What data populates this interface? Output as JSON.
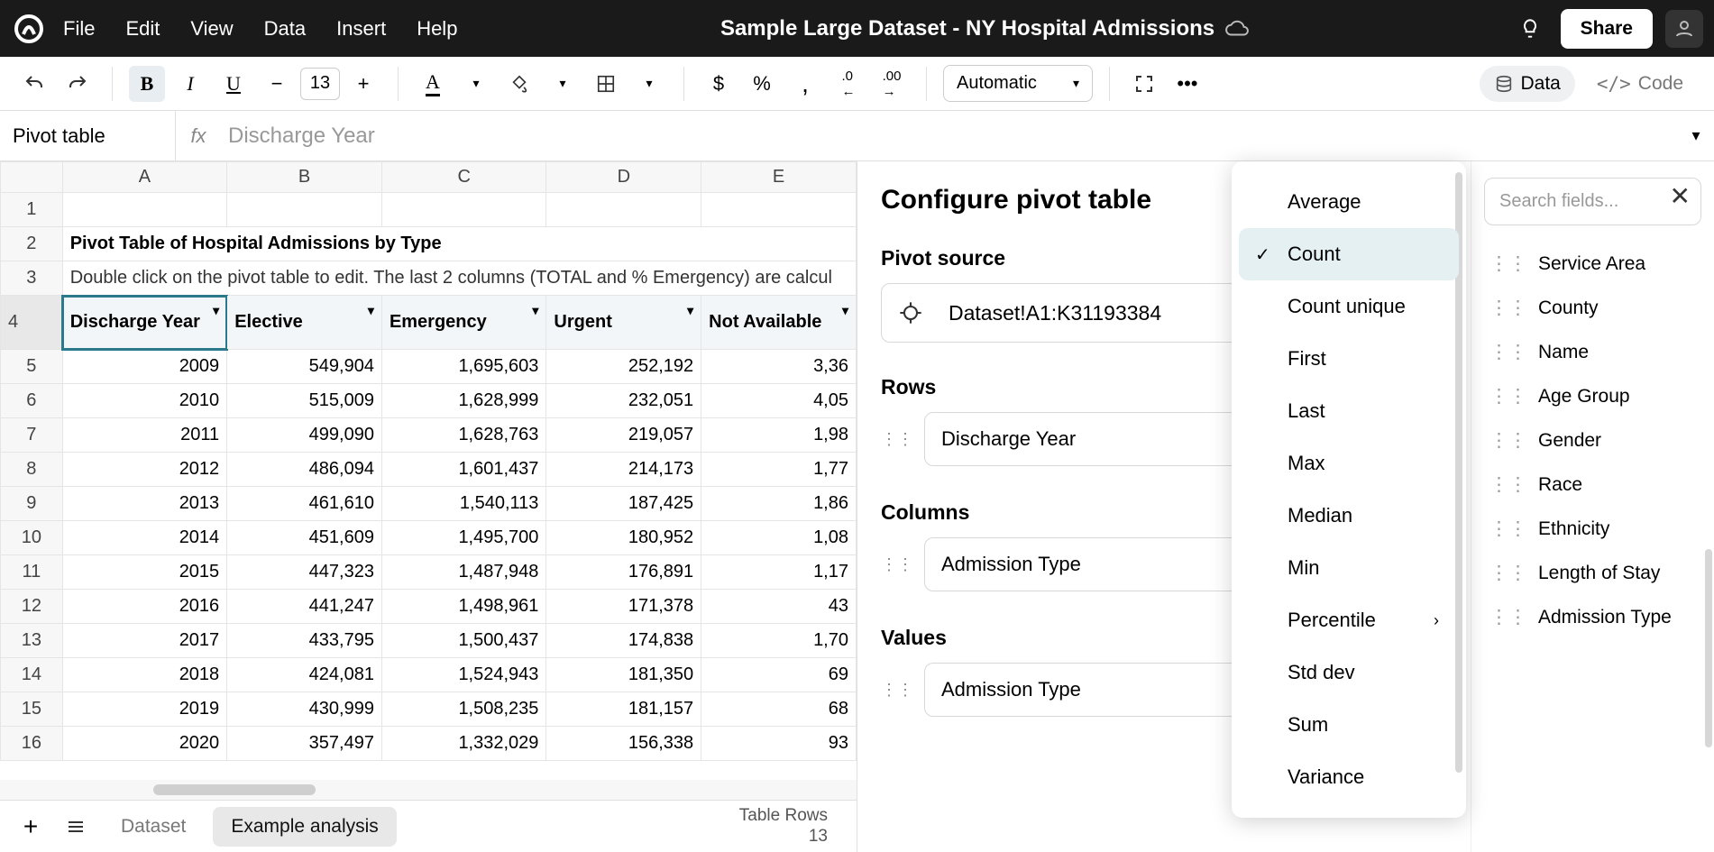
{
  "menubar": [
    "File",
    "Edit",
    "View",
    "Data",
    "Insert",
    "Help"
  ],
  "doc_title": "Sample Large Dataset - NY Hospital Admissions",
  "share": "Share",
  "toolbar": {
    "font_size": "13",
    "auto": "Automatic",
    "data_pill": "Data",
    "code_pill": "Code"
  },
  "formula": {
    "name_box": "Pivot table",
    "placeholder": "Discharge Year"
  },
  "sheet": {
    "col_headers": [
      "A",
      "B",
      "C",
      "D",
      "E"
    ],
    "title": "Pivot Table of Hospital Admissions by Type",
    "subtitle": "Double click on the pivot table to edit. The last 2 columns (TOTAL and % Emergency) are calcul",
    "pivot_headers": [
      "Discharge Year",
      "Elective",
      "Emergency",
      "Urgent",
      "Not Available"
    ],
    "rows": [
      {
        "n": 5,
        "y": "2009",
        "e": "549,904",
        "em": "1,695,603",
        "u": "252,192",
        "na": "3,36"
      },
      {
        "n": 6,
        "y": "2010",
        "e": "515,009",
        "em": "1,628,999",
        "u": "232,051",
        "na": "4,05"
      },
      {
        "n": 7,
        "y": "2011",
        "e": "499,090",
        "em": "1,628,763",
        "u": "219,057",
        "na": "1,98"
      },
      {
        "n": 8,
        "y": "2012",
        "e": "486,094",
        "em": "1,601,437",
        "u": "214,173",
        "na": "1,77"
      },
      {
        "n": 9,
        "y": "2013",
        "e": "461,610",
        "em": "1,540,113",
        "u": "187,425",
        "na": "1,86"
      },
      {
        "n": 10,
        "y": "2014",
        "e": "451,609",
        "em": "1,495,700",
        "u": "180,952",
        "na": "1,08"
      },
      {
        "n": 11,
        "y": "2015",
        "e": "447,323",
        "em": "1,487,948",
        "u": "176,891",
        "na": "1,17"
      },
      {
        "n": 12,
        "y": "2016",
        "e": "441,247",
        "em": "1,498,961",
        "u": "171,378",
        "na": "43"
      },
      {
        "n": 13,
        "y": "2017",
        "e": "433,795",
        "em": "1,500,437",
        "u": "174,838",
        "na": "1,70"
      },
      {
        "n": 14,
        "y": "2018",
        "e": "424,081",
        "em": "1,524,943",
        "u": "181,350",
        "na": "69"
      },
      {
        "n": 15,
        "y": "2019",
        "e": "430,999",
        "em": "1,508,235",
        "u": "181,157",
        "na": "68"
      },
      {
        "n": 16,
        "y": "2020",
        "e": "357,497",
        "em": "1,332,029",
        "u": "156,338",
        "na": "93"
      }
    ]
  },
  "tabs": {
    "dataset": "Dataset",
    "active": "Example analysis",
    "status_label": "Table Rows",
    "status_value": "13"
  },
  "panel": {
    "title": "Configure pivot table",
    "source_label": "Pivot source",
    "source": "Dataset!A1:K31193384",
    "rows_label": "Rows",
    "rows_chip": "Discharge Year",
    "cols_label": "Columns",
    "cols_chip": "Admission Type",
    "values_label": "Values",
    "values_chip": "Admission Type",
    "values_agg": "Count"
  },
  "agg_options": [
    "Average",
    "Count",
    "Count unique",
    "First",
    "Last",
    "Max",
    "Median",
    "Min",
    "Percentile",
    "Std dev",
    "Sum",
    "Variance"
  ],
  "agg_selected": "Count",
  "fields_search": "Search fields...",
  "fields": [
    "Service Area",
    "County",
    "Name",
    "Age Group",
    "Gender",
    "Race",
    "Ethnicity",
    "Length of Stay",
    "Admission Type"
  ]
}
